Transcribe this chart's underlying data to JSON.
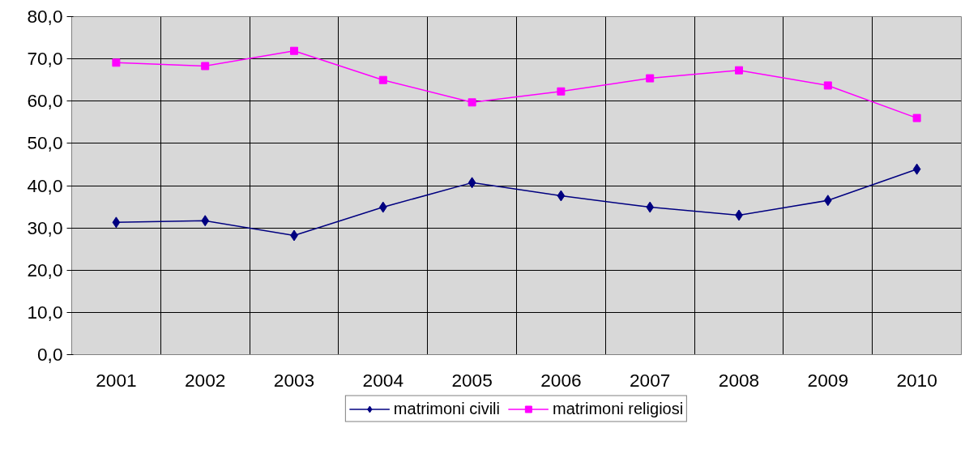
{
  "chart_data": {
    "type": "line",
    "categories": [
      "2001",
      "2002",
      "2003",
      "2004",
      "2005",
      "2006",
      "2007",
      "2008",
      "2009",
      "2010"
    ],
    "series": [
      {
        "name": "matrimoni civili",
        "color": "#000080",
        "marker": "diamond",
        "values": [
          31.3,
          31.7,
          28.2,
          34.9,
          40.7,
          37.6,
          34.9,
          33.0,
          36.5,
          43.9
        ]
      },
      {
        "name": "matrimoni religiosi",
        "color": "#ff00ff",
        "marker": "square",
        "values": [
          69.1,
          68.3,
          71.9,
          65.0,
          59.7,
          62.3,
          65.4,
          67.3,
          63.7,
          56.0
        ]
      }
    ],
    "ylim": [
      0,
      80
    ],
    "yticks": [
      {
        "value": 0,
        "label": "0,0"
      },
      {
        "value": 10,
        "label": "10,0"
      },
      {
        "value": 20,
        "label": "20,0"
      },
      {
        "value": 30,
        "label": "30,0"
      },
      {
        "value": 40,
        "label": "40,0"
      },
      {
        "value": 50,
        "label": "50,0"
      },
      {
        "value": 60,
        "label": "60,0"
      },
      {
        "value": 70,
        "label": "70,0"
      },
      {
        "value": 80,
        "label": "80,0"
      }
    ],
    "grid": true,
    "legend": "bottom",
    "line_style": "solid"
  }
}
